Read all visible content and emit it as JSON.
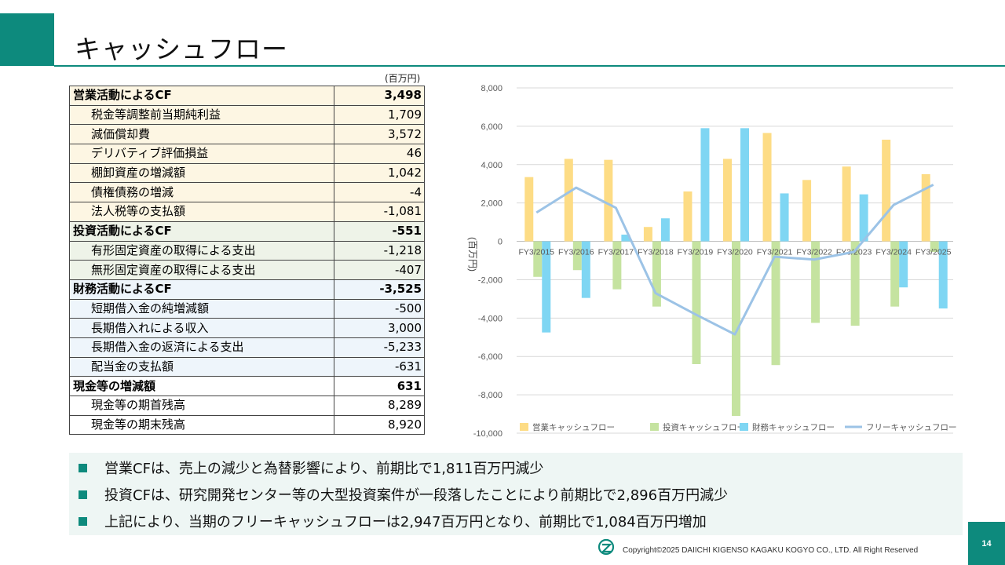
{
  "title": "キャッシュフロー",
  "unit": "(百万円)",
  "table": [
    {
      "label": "営業活動によるCF",
      "value": "3,498",
      "kind": "op",
      "header": true
    },
    {
      "label": "税金等調整前当期純利益",
      "value": "1,709",
      "kind": "op"
    },
    {
      "label": "減価償却費",
      "value": "3,572",
      "kind": "op"
    },
    {
      "label": "デリバティブ評価損益",
      "value": "46",
      "kind": "op"
    },
    {
      "label": "棚卸資産の増減額",
      "value": "1,042",
      "kind": "op"
    },
    {
      "label": "債権債務の増減",
      "value": "-4",
      "kind": "op"
    },
    {
      "label": "法人税等の支払額",
      "value": "-1,081",
      "kind": "op"
    },
    {
      "label": "投資活動によるCF",
      "value": "-551",
      "kind": "inv",
      "header": true
    },
    {
      "label": "有形固定資産の取得による支出",
      "value": "-1,218",
      "kind": "inv"
    },
    {
      "label": "無形固定資産の取得による支出",
      "value": "-407",
      "kind": "inv"
    },
    {
      "label": "財務活動によるCF",
      "value": "-3,525",
      "kind": "fin",
      "header": true
    },
    {
      "label": "短期借入金の純増減額",
      "value": "-500",
      "kind": "fin"
    },
    {
      "label": "長期借入れによる収入",
      "value": "3,000",
      "kind": "fin"
    },
    {
      "label": "長期借入金の返済による支出",
      "value": "-5,233",
      "kind": "fin"
    },
    {
      "label": "配当金の支払額",
      "value": "-631",
      "kind": "fin"
    },
    {
      "label": "現金等の増減額",
      "value": "631",
      "kind": "cash",
      "header": true
    },
    {
      "label": "現金等の期首残高",
      "value": "8,289",
      "kind": "cash"
    },
    {
      "label": "現金等の期末残高",
      "value": "8,920",
      "kind": "cash"
    }
  ],
  "chart_data": {
    "type": "bar",
    "ylabel": "(百万円)",
    "ylim": [
      -10000,
      8000
    ],
    "yticks": [
      "8,000",
      "6,000",
      "4,000",
      "2,000",
      "0",
      "-2,000",
      "-4,000",
      "-6,000",
      "-8,000",
      "-10,000"
    ],
    "categories": [
      "FY3/2015",
      "FY3/2016",
      "FY3/2017",
      "FY3/2018",
      "FY3/2019",
      "FY3/2020",
      "FY3/2021",
      "FY3/2022",
      "FY3/2023",
      "FY3/2024",
      "FY3/2025"
    ],
    "series": [
      {
        "name": "営業キャッシュフロー",
        "type": "bar",
        "color": "#fddc85",
        "values": [
          3350,
          4300,
          4250,
          750,
          2600,
          4300,
          5650,
          3200,
          3900,
          5300,
          3500
        ]
      },
      {
        "name": "投資キャッシュフロー",
        "type": "bar",
        "color": "#c5e3a0",
        "values": [
          -1850,
          -1500,
          -2500,
          -3400,
          -6400,
          -9100,
          -6450,
          -4250,
          -4400,
          -3400,
          -550
        ]
      },
      {
        "name": "財務キャッシュフロー",
        "type": "bar",
        "color": "#7fd6f3",
        "values": [
          -4750,
          -2950,
          350,
          1200,
          5900,
          5900,
          2500,
          0,
          2450,
          -2400,
          -3500
        ]
      },
      {
        "name": "フリーキャッシュフロー",
        "type": "line",
        "color": "#9cc3e6",
        "values": [
          1500,
          2800,
          1750,
          -2700,
          -3800,
          -4850,
          -800,
          -950,
          -550,
          1900,
          2950
        ]
      }
    ],
    "legend": "bottom"
  },
  "bullets": [
    "営業CFは、売上の減少と為替影響により、前期比で1,811百万円減少",
    "投資CFは、研究開発センター等の大型投資案件が一段落したことにより前期比で2,896百万円減少",
    "上記により、当期のフリーキャッシュフローは2,947百万円となり、前期比で1,084百万円増加"
  ],
  "footer": {
    "copyright": "Copyright©2025 DAIICHI KIGENSO KAGAKU KOGYO CO., LTD. All Right Reserved",
    "page": "14"
  }
}
